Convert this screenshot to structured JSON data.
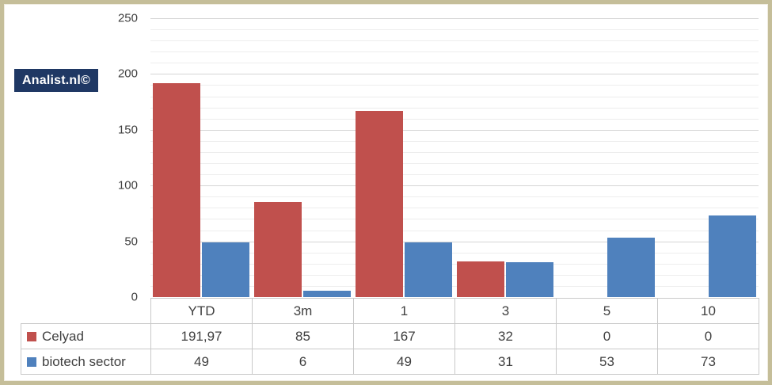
{
  "watermark": "Analist.nl©",
  "colors": {
    "celyad": "#C0504D",
    "biotech": "#4F81BD",
    "badge_bg": "#1F3864",
    "frame_border": "#C5BE99",
    "grid_major": "#D5D5D5",
    "grid_minor": "#EDEDED",
    "table_border": "#C9C9C9",
    "text": "#404040"
  },
  "chart_data": {
    "type": "bar",
    "title": "",
    "xlabel": "",
    "ylabel": "",
    "categories": [
      "YTD",
      "3m",
      "1",
      "3",
      "5",
      "10"
    ],
    "series": [
      {
        "name": "Celyad",
        "color_key": "celyad",
        "values": [
          191.97,
          85,
          167,
          32,
          0,
          0
        ],
        "display": [
          "191,97",
          "85",
          "167",
          "32",
          "0",
          "0"
        ]
      },
      {
        "name": "biotech sector",
        "color_key": "biotech",
        "values": [
          49,
          6,
          49,
          31,
          53,
          73
        ],
        "display": [
          "49",
          "6",
          "49",
          "31",
          "53",
          "73"
        ]
      }
    ],
    "ylim": [
      0,
      250
    ],
    "y_ticks": [
      0,
      50,
      100,
      150,
      200,
      250
    ],
    "y_minor_step": 10,
    "grid": true,
    "legend_position": "table-left"
  }
}
